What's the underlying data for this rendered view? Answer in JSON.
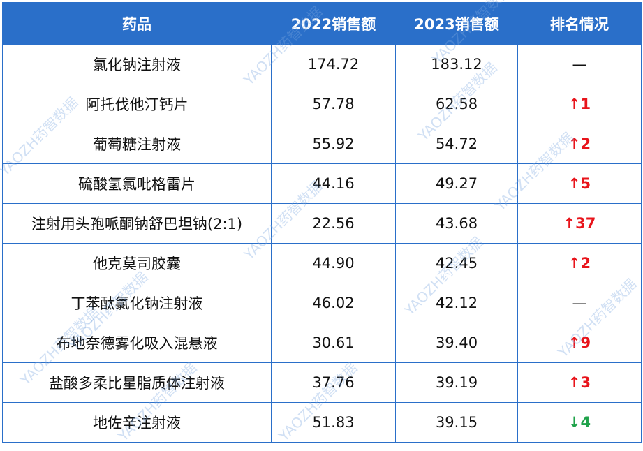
{
  "table": {
    "header": [
      "药品",
      "2022销售额",
      "2023销售额",
      "排名情况"
    ],
    "rows": [
      [
        "氯化钠注射液",
        "174.72",
        "183.12",
        "—"
      ],
      [
        "阿托伐他汀钙片",
        "57.78",
        "62.58",
        "↑1"
      ],
      [
        "葡萄糖注射液",
        "55.92",
        "54.72",
        "↑2"
      ],
      [
        "硫酸氢氯吡格雷片",
        "44.16",
        "49.27",
        "↑5"
      ],
      [
        "注射用头孢哌酮钠舒巴坦钠(2:1)",
        "22.56",
        "43.68",
        "↑37"
      ],
      [
        "他克莫司胶囊",
        "44.90",
        "42.45",
        "↑2"
      ],
      [
        "丁苯酞氯化钠注射液",
        "46.02",
        "42.12",
        "—"
      ],
      [
        "布地奈德雾化吸入混悬液",
        "30.61",
        "39.40",
        "↑9"
      ],
      [
        "盐酸多柔比星脂质体注射液",
        "37.76",
        "39.19",
        "↑3"
      ],
      [
        "地佐辛注射液",
        "51.83",
        "39.15",
        "↓4"
      ]
    ]
  },
  "watermark": "YAOZH药智数据"
}
